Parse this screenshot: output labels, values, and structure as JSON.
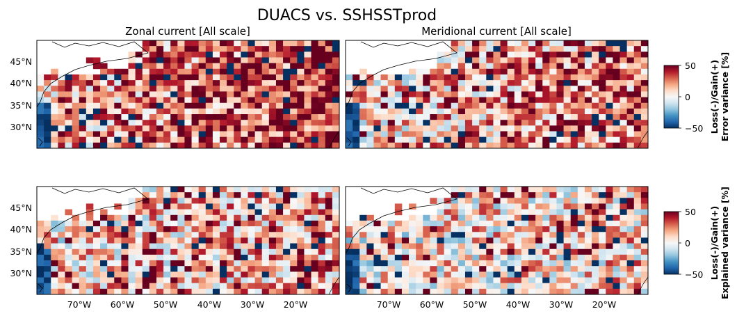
{
  "figure": {
    "title": "DUACS vs. SSHSSTprod"
  },
  "columns": [
    {
      "title": "Zonal current [All scale]"
    },
    {
      "title": "Meridional current [All scale]"
    }
  ],
  "colorbars": [
    {
      "label_line1": "Loss(-)/Gain(+)",
      "label_line2": "Error variance [%]",
      "ticks": [
        "50",
        "0",
        "−50"
      ]
    },
    {
      "label_line1": "Loss(-)/Gain(+)",
      "label_line2": "Explained variance [%]",
      "ticks": [
        "50",
        "0",
        "−50"
      ]
    }
  ],
  "axes": {
    "lat_ticks": [
      "45°N",
      "40°N",
      "35°N",
      "30°N"
    ],
    "lon_ticks": [
      "70°W",
      "60°W",
      "50°W",
      "40°W",
      "30°W",
      "20°W"
    ]
  },
  "map_extent": {
    "lon_min": -80,
    "lon_max": -10,
    "lat_min": 25,
    "lat_max": 50
  },
  "color_scale": {
    "cmap": "RdBu_r",
    "vmin": -50,
    "vmax": 50
  },
  "grid": {
    "cols": 43,
    "rows": 19
  }
}
